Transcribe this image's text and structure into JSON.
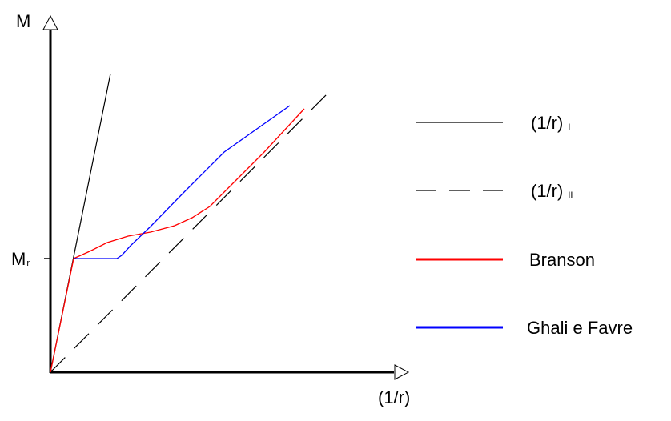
{
  "chart_data": {
    "type": "line",
    "title": "",
    "ylabel": "M",
    "xlabel": "(1/r)",
    "y_marker": {
      "label_main": "M",
      "label_sub": "r"
    },
    "legend": {
      "placement": "right",
      "items": [
        {
          "key": "stage1",
          "label_main": "(1/r)",
          "label_sub": "I",
          "color": "#000000",
          "style": "solid"
        },
        {
          "key": "stage2",
          "label_main": "(1/r)",
          "label_sub": "II",
          "color": "#000000",
          "style": "dashed"
        },
        {
          "key": "branson",
          "label": "Branson",
          "color": "#ff0000",
          "style": "solid"
        },
        {
          "key": "ghali",
          "label": "Ghali e Favre",
          "color": "#0000ff",
          "style": "solid"
        }
      ]
    }
  }
}
